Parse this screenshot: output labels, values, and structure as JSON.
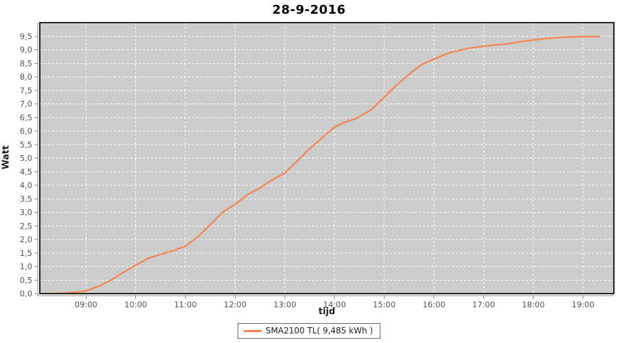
{
  "chart_data": {
    "type": "line",
    "title": "28-9-2016",
    "xlabel": "tijd",
    "ylabel": "Watt",
    "legend_position": "bottom-center",
    "grid": "on-dashed-white",
    "plot_bg_color": "#cccccc",
    "grid_color": "#ffffff",
    "frame_color": "#222222",
    "axis_line_color": "#888888",
    "tick_label_color": "#555555",
    "xlim_hours": [
      8.07,
      19.62
    ],
    "ylim": [
      0,
      10
    ],
    "x_ticks": [
      {
        "hour": 9,
        "label": "09:00"
      },
      {
        "hour": 10,
        "label": "10:00"
      },
      {
        "hour": 11,
        "label": "11:00"
      },
      {
        "hour": 12,
        "label": "12:00"
      },
      {
        "hour": 13,
        "label": "13:00"
      },
      {
        "hour": 14,
        "label": "14:00"
      },
      {
        "hour": 15,
        "label": "15:00"
      },
      {
        "hour": 16,
        "label": "16:00"
      },
      {
        "hour": 17,
        "label": "17:00"
      },
      {
        "hour": 18,
        "label": "18:00"
      },
      {
        "hour": 19,
        "label": "19:00"
      }
    ],
    "y_ticks": [
      {
        "value": 0.0,
        "label": "0,0"
      },
      {
        "value": 0.5,
        "label": "0,5"
      },
      {
        "value": 1.0,
        "label": "1,0"
      },
      {
        "value": 1.5,
        "label": "1,5"
      },
      {
        "value": 2.0,
        "label": "2,0"
      },
      {
        "value": 2.5,
        "label": "2,5"
      },
      {
        "value": 3.0,
        "label": "3,0"
      },
      {
        "value": 3.5,
        "label": "3,5"
      },
      {
        "value": 4.0,
        "label": "4,0"
      },
      {
        "value": 4.5,
        "label": "4,5"
      },
      {
        "value": 5.0,
        "label": "5,0"
      },
      {
        "value": 5.5,
        "label": "5,5"
      },
      {
        "value": 6.0,
        "label": "6,0"
      },
      {
        "value": 6.5,
        "label": "6,5"
      },
      {
        "value": 7.0,
        "label": "7,0"
      },
      {
        "value": 7.5,
        "label": "7,5"
      },
      {
        "value": 8.0,
        "label": "8,0"
      },
      {
        "value": 8.5,
        "label": "8,5"
      },
      {
        "value": 9.0,
        "label": "9,0"
      },
      {
        "value": 9.5,
        "label": "9,5"
      }
    ],
    "series": [
      {
        "name": "SMA2100 TL( 9,485 kWh )",
        "color": "#f5834b",
        "total_kwh_label": "9,485",
        "points": [
          [
            "08:13",
            0.0
          ],
          [
            "08:25",
            0.01
          ],
          [
            "08:35",
            0.02
          ],
          [
            "08:50",
            0.06
          ],
          [
            "09:00",
            0.1
          ],
          [
            "09:15",
            0.27
          ],
          [
            "09:30",
            0.5
          ],
          [
            "09:45",
            0.78
          ],
          [
            "10:00",
            1.05
          ],
          [
            "10:15",
            1.3
          ],
          [
            "10:30",
            1.45
          ],
          [
            "10:45",
            1.58
          ],
          [
            "11:00",
            1.75
          ],
          [
            "11:15",
            2.1
          ],
          [
            "11:30",
            2.55
          ],
          [
            "11:45",
            3.0
          ],
          [
            "12:00",
            3.3
          ],
          [
            "12:15",
            3.65
          ],
          [
            "12:30",
            3.9
          ],
          [
            "12:45",
            4.2
          ],
          [
            "13:00",
            4.45
          ],
          [
            "13:15",
            4.9
          ],
          [
            "13:30",
            5.35
          ],
          [
            "13:45",
            5.75
          ],
          [
            "14:00",
            6.15
          ],
          [
            "14:10",
            6.3
          ],
          [
            "14:25",
            6.45
          ],
          [
            "14:45",
            6.8
          ],
          [
            "15:00",
            7.25
          ],
          [
            "15:15",
            7.7
          ],
          [
            "15:30",
            8.1
          ],
          [
            "15:45",
            8.45
          ],
          [
            "16:00",
            8.65
          ],
          [
            "16:15",
            8.85
          ],
          [
            "16:30",
            8.98
          ],
          [
            "16:45",
            9.07
          ],
          [
            "17:00",
            9.13
          ],
          [
            "17:15",
            9.18
          ],
          [
            "17:30",
            9.22
          ],
          [
            "17:45",
            9.3
          ],
          [
            "18:00",
            9.36
          ],
          [
            "18:15",
            9.41
          ],
          [
            "18:30",
            9.45
          ],
          [
            "18:45",
            9.47
          ],
          [
            "19:00",
            9.48
          ],
          [
            "19:20",
            9.49
          ]
        ]
      }
    ]
  }
}
